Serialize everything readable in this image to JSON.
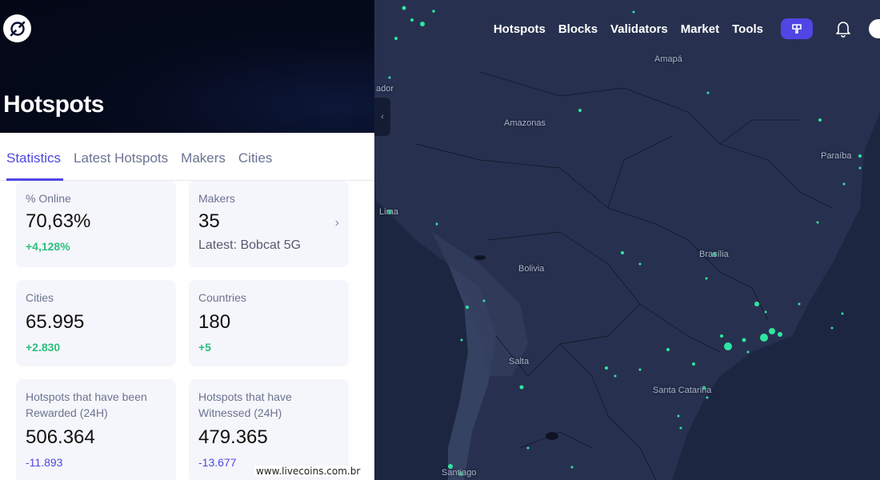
{
  "nav": {
    "links": [
      "Hotspots",
      "Blocks",
      "Validators",
      "Market",
      "Tools"
    ],
    "pill_icon": "signal-icon",
    "bell_icon": "bell-icon"
  },
  "panel": {
    "title": "Hotspots",
    "tabs": [
      "Statistics",
      "Latest Hotspots",
      "Makers",
      "Cities"
    ],
    "active_tab": "Statistics"
  },
  "stats": {
    "online": {
      "label": "% Online",
      "value": "70,63%",
      "delta": "+4,128%"
    },
    "makers": {
      "label": "Makers",
      "value": "35",
      "sub": "Latest: Bobcat 5G"
    },
    "cities": {
      "label": "Cities",
      "value": "65.995",
      "delta": "+2.830"
    },
    "countries": {
      "label": "Countries",
      "value": "180",
      "delta": "+5"
    },
    "rewarded": {
      "label": "Hotspots that have been Rewarded (24H)",
      "value": "506.364",
      "delta": "-11.893"
    },
    "witnessed": {
      "label": "Hotspots that have Witnessed (24H)",
      "value": "479.365",
      "delta": "-13.677"
    }
  },
  "map": {
    "labels": [
      "Amapá",
      "Amazonas",
      "Paraíba",
      "Lima",
      "Bolivia",
      "Brasília",
      "Salta",
      "Santa Catarina",
      "Santiago",
      "ador"
    ],
    "accent": "#2ee6a0"
  },
  "watermark": "www.livecoins.com.br",
  "colors": {
    "accent": "#4f46e5",
    "positive": "#2cbf7e"
  }
}
